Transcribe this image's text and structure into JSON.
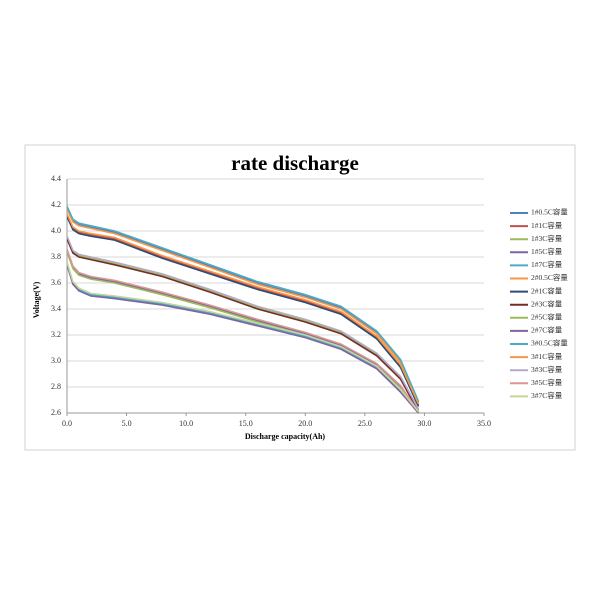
{
  "chart_data": {
    "type": "line",
    "title": "rate discharge",
    "x_label": "Discharge capacity(Ah)",
    "y_label": "Voltage(V)",
    "x": [
      0,
      0.5,
      1,
      2,
      4,
      8,
      12,
      16,
      20,
      23,
      26,
      28,
      29.5
    ],
    "xlim": [
      0,
      35
    ],
    "xticks": [
      {
        "value": 0,
        "label": "0.0"
      },
      {
        "value": 5,
        "label": "5.0"
      },
      {
        "value": 10,
        "label": "10.0"
      },
      {
        "value": 15,
        "label": "15.0"
      },
      {
        "value": 20,
        "label": "20.0"
      },
      {
        "value": 25,
        "label": "25.0"
      },
      {
        "value": 30,
        "label": "30.0"
      },
      {
        "value": 35,
        "label": "35.0"
      }
    ],
    "ylim": [
      2.6,
      4.4
    ],
    "yticks": [
      2.6,
      2.8,
      {
        "value": 3,
        "label": "3.0"
      },
      3.2,
      3.4,
      3.6,
      3.8,
      {
        "value": 4,
        "label": "4.0"
      },
      4.2,
      4.4
    ],
    "grid": true,
    "legend": "right",
    "series": [
      {
        "name": "1#0.5C容量",
        "color": "#4f81bd",
        "values": [
          4.18,
          4.08,
          4.05,
          4.03,
          3.99,
          3.86,
          3.73,
          3.6,
          3.5,
          3.41,
          3.22,
          3.0,
          2.68
        ]
      },
      {
        "name": "1#1C容量",
        "color": "#c0504d",
        "values": [
          4.12,
          4.02,
          3.99,
          3.97,
          3.94,
          3.8,
          3.68,
          3.56,
          3.46,
          3.37,
          3.18,
          2.96,
          2.66
        ]
      },
      {
        "name": "1#3C容量",
        "color": "#9bbb59",
        "values": [
          3.95,
          3.84,
          3.81,
          3.79,
          3.75,
          3.66,
          3.54,
          3.41,
          3.31,
          3.22,
          3.05,
          2.87,
          2.62
        ]
      },
      {
        "name": "1#5C容量",
        "color": "#8064a2",
        "values": [
          3.85,
          3.72,
          3.67,
          3.64,
          3.61,
          3.52,
          3.42,
          3.31,
          3.21,
          3.12,
          2.97,
          2.8,
          2.6
        ]
      },
      {
        "name": "1#7C容量",
        "color": "#4bacc6",
        "values": [
          3.75,
          3.6,
          3.55,
          3.51,
          3.49,
          3.44,
          3.37,
          3.28,
          3.19,
          3.1,
          2.95,
          2.77,
          2.6
        ]
      },
      {
        "name": "2#0.5C容量",
        "color": "#f79646",
        "values": [
          4.17,
          4.07,
          4.04,
          4.02,
          3.98,
          3.85,
          3.72,
          3.59,
          3.49,
          3.4,
          3.21,
          2.99,
          2.67
        ]
      },
      {
        "name": "2#1C容量",
        "color": "#2c4d75",
        "values": [
          4.11,
          4.01,
          3.98,
          3.96,
          3.93,
          3.79,
          3.67,
          3.55,
          3.45,
          3.36,
          3.17,
          2.95,
          2.65
        ]
      },
      {
        "name": "2#3C容量",
        "color": "#772c2a",
        "values": [
          3.94,
          3.83,
          3.8,
          3.78,
          3.74,
          3.65,
          3.53,
          3.4,
          3.3,
          3.21,
          3.04,
          2.86,
          2.61
        ]
      },
      {
        "name": "2#5C容量",
        "color": "#9bbb59",
        "values": [
          3.84,
          3.71,
          3.66,
          3.63,
          3.6,
          3.51,
          3.41,
          3.3,
          3.2,
          3.11,
          2.96,
          2.79,
          2.6
        ]
      },
      {
        "name": "2#7C容量",
        "color": "#8064a2",
        "values": [
          3.74,
          3.59,
          3.54,
          3.5,
          3.48,
          3.43,
          3.36,
          3.27,
          3.18,
          3.09,
          2.94,
          2.76,
          2.6
        ]
      },
      {
        "name": "3#0.5C容量",
        "color": "#4bacc6",
        "values": [
          4.19,
          4.09,
          4.06,
          4.04,
          4.0,
          3.87,
          3.74,
          3.61,
          3.51,
          3.42,
          3.23,
          3.01,
          2.69
        ]
      },
      {
        "name": "3#1C容量",
        "color": "#f79646",
        "values": [
          4.13,
          4.03,
          4.0,
          3.98,
          3.95,
          3.81,
          3.69,
          3.57,
          3.47,
          3.38,
          3.19,
          2.97,
          2.67
        ]
      },
      {
        "name": "3#3C容量",
        "color": "#b3a9c9",
        "values": [
          3.96,
          3.85,
          3.82,
          3.8,
          3.76,
          3.67,
          3.55,
          3.42,
          3.32,
          3.23,
          3.06,
          2.88,
          2.63
        ]
      },
      {
        "name": "3#5C容量",
        "color": "#d99694",
        "values": [
          3.86,
          3.73,
          3.68,
          3.65,
          3.62,
          3.53,
          3.43,
          3.32,
          3.22,
          3.13,
          2.98,
          2.81,
          2.61
        ]
      },
      {
        "name": "3#7C容量",
        "color": "#c3d69b",
        "values": [
          3.76,
          3.61,
          3.56,
          3.52,
          3.5,
          3.45,
          3.38,
          3.29,
          3.2,
          3.11,
          2.96,
          2.78,
          2.61
        ]
      }
    ]
  }
}
